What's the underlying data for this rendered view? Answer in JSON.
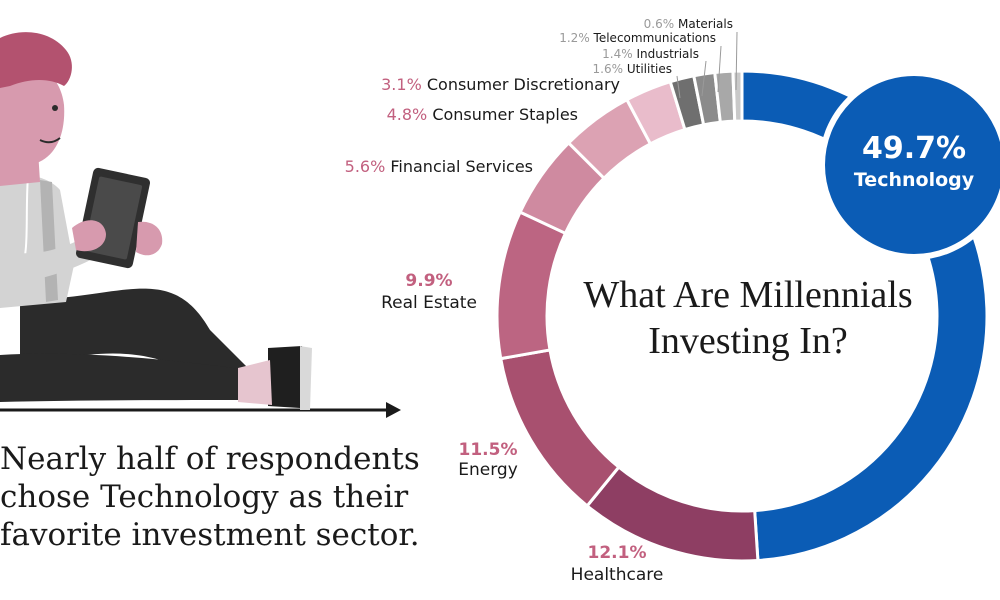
{
  "title_lines": [
    "What Are Millennials",
    "Investing In?"
  ],
  "caption_lines": [
    "Nearly half of respondents",
    "chose Technology as their",
    "favorite investment sector."
  ],
  "chart_data": {
    "type": "pie",
    "title": "What Are Millennials Investing In?",
    "slices": [
      {
        "label": "Technology",
        "value": 49.7,
        "display": "49.7%",
        "color": "#0b5cb5"
      },
      {
        "label": "Healthcare",
        "value": 12.1,
        "display": "12.1%",
        "color": "#8e3e63"
      },
      {
        "label": "Energy",
        "value": 11.5,
        "display": "11.5%",
        "color": "#a8506f"
      },
      {
        "label": "Real Estate",
        "value": 9.9,
        "display": "9.9%",
        "color": "#bc6582"
      },
      {
        "label": "Financial Services",
        "value": 5.6,
        "display": "5.6%",
        "color": "#cf8aa0"
      },
      {
        "label": "Consumer Staples",
        "value": 4.8,
        "display": "4.8%",
        "color": "#dca2b3"
      },
      {
        "label": "Consumer Discretionary",
        "value": 3.1,
        "display": "3.1%",
        "color": "#e9bccb"
      },
      {
        "label": "Utilities",
        "value": 1.6,
        "display": "1.6%",
        "color": "#6f6f6f"
      },
      {
        "label": "Industrials",
        "value": 1.4,
        "display": "1.4%",
        "color": "#8b8b8b"
      },
      {
        "label": "Telecommunications",
        "value": 1.2,
        "display": "1.2%",
        "color": "#a8a8a8"
      },
      {
        "label": "Materials",
        "value": 0.6,
        "display": "0.6%",
        "color": "#c9c9c9"
      }
    ],
    "label_colors": {
      "percent": "#c2607f",
      "percent_small": "#9a9a9a",
      "text": "#1a1a1a",
      "highlight_text": "#ffffff"
    }
  }
}
